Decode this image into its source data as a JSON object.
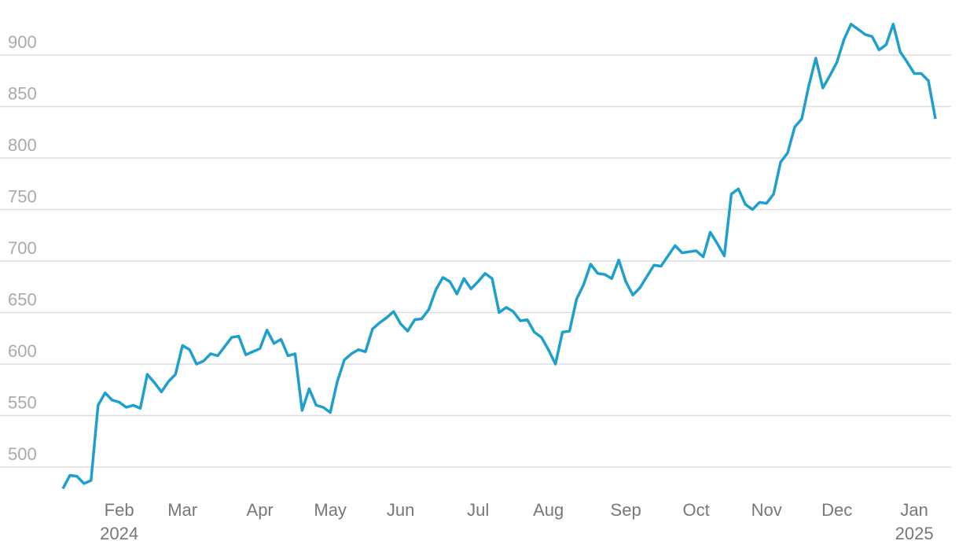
{
  "chart_data": {
    "type": "line",
    "categories": [
      null,
      null,
      null,
      null,
      null,
      null,
      null,
      null,
      "Feb 2024",
      null,
      null,
      null,
      null,
      null,
      null,
      null,
      null,
      "Mar",
      null,
      null,
      null,
      null,
      null,
      null,
      null,
      null,
      null,
      null,
      "Apr",
      null,
      null,
      null,
      null,
      null,
      null,
      null,
      null,
      null,
      "May",
      null,
      null,
      null,
      null,
      null,
      null,
      null,
      null,
      null,
      "Jun",
      null,
      null,
      null,
      null,
      null,
      null,
      null,
      null,
      null,
      null,
      "Jul",
      null,
      null,
      null,
      null,
      null,
      null,
      null,
      null,
      null,
      "Aug",
      null,
      null,
      null,
      null,
      null,
      null,
      null,
      null,
      null,
      null,
      "Sep",
      null,
      null,
      null,
      null,
      null,
      null,
      null,
      null,
      null,
      "Oct",
      null,
      null,
      null,
      null,
      null,
      null,
      null,
      null,
      null,
      "Nov",
      null,
      null,
      null,
      null,
      null,
      null,
      null,
      null,
      null,
      "Dec",
      null,
      null,
      null,
      null,
      null,
      null,
      null,
      null,
      null,
      null,
      "Jan 2025",
      null,
      null,
      null
    ],
    "series": [
      {
        "color": "#1f9fcc",
        "values": [
          479,
          492,
          491,
          484,
          487,
          560,
          572,
          565,
          563,
          558,
          560,
          557,
          590,
          582,
          573,
          583,
          590,
          618,
          614,
          600,
          603,
          610,
          608,
          617,
          626,
          627,
          609,
          612,
          615,
          633,
          620,
          624,
          608,
          610,
          555,
          576,
          560,
          558,
          553,
          583,
          604,
          610,
          614,
          612,
          634,
          640,
          645,
          651,
          639,
          632,
          643,
          644,
          653,
          672,
          684,
          680,
          668,
          683,
          673,
          680,
          688,
          683,
          650,
          655,
          651,
          642,
          643,
          631,
          626,
          614,
          600,
          631,
          632,
          663,
          677,
          697,
          688,
          687,
          683,
          701,
          680,
          667,
          674,
          685,
          696,
          695,
          705,
          715,
          708,
          709,
          710,
          704,
          728,
          717,
          705,
          765,
          770,
          755,
          750,
          757,
          756,
          765,
          796,
          805,
          830,
          838,
          870,
          897,
          868,
          880,
          893,
          915,
          930,
          925,
          920,
          918,
          905,
          910,
          930,
          903,
          893,
          882,
          882,
          875,
          838
        ]
      }
    ],
    "ylim": [
      478,
      947
    ],
    "yticks": [
      500,
      550,
      600,
      650,
      700,
      750,
      800,
      850,
      900
    ],
    "grid": true
  }
}
